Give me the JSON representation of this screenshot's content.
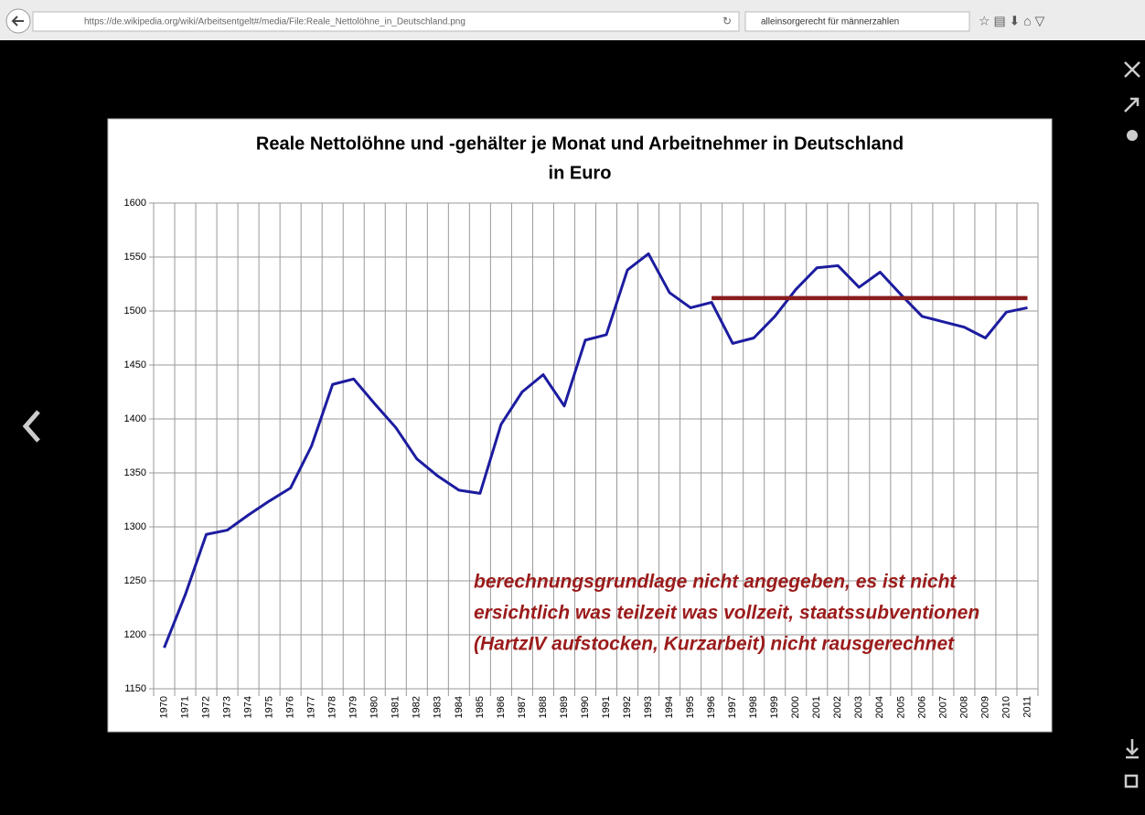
{
  "browser": {
    "url": "https://de.wikipedia.org/wiki/Arbeitsentgelt#/media/File:Reale_Nettolöhne_in_Deutschland.png",
    "search": "alleinsorgerecht für männerzahlen"
  },
  "chart_data": {
    "type": "line",
    "title": [
      "Reale Nettolöhne und -gehälter je Monat und Arbeitnehmer in Deutschland",
      "in Euro"
    ],
    "annotation": [
      "berechnungsgrundlage nicht angegeben, es ist nicht",
      "ersichtlich was teilzeit was vollzeit, staatssubventionen",
      "(HartzIV aufstocken, Kurzarbeit) nicht rausgerechnet"
    ],
    "categories": [
      "1970",
      "1971",
      "1972",
      "1973",
      "1974",
      "1975",
      "1976",
      "1977",
      "1978",
      "1979",
      "1980",
      "1981",
      "1982",
      "1983",
      "1984",
      "1985",
      "1986",
      "1987",
      "1988",
      "1989",
      "1990",
      "1991",
      "1992",
      "1993",
      "1994",
      "1995",
      "1996",
      "1997",
      "1998",
      "1999",
      "2000",
      "2001",
      "2002",
      "2003",
      "2004",
      "2005",
      "2006",
      "2007",
      "2008",
      "2009",
      "2010",
      "2011"
    ],
    "series": [
      {
        "color": "#1c1ca0",
        "values": [
          1188,
          1237,
          1293,
          1297,
          1311,
          1324,
          1336,
          1375,
          1432,
          1437,
          1414,
          1392,
          1363,
          1347,
          1334,
          1331,
          1395,
          1425,
          1441,
          1412,
          1473,
          1478,
          1538,
          1553,
          1517,
          1503,
          1508,
          1470,
          1475,
          1495,
          1520,
          1540,
          1542,
          1522,
          1536,
          1515,
          1495,
          1490,
          1485,
          1475,
          1499,
          1503
        ]
      },
      {
        "color": "#8a1c1c",
        "values": [
          null,
          null,
          null,
          null,
          null,
          null,
          null,
          null,
          null,
          null,
          null,
          null,
          null,
          null,
          null,
          null,
          null,
          null,
          null,
          null,
          null,
          null,
          null,
          null,
          null,
          null,
          1512,
          1512,
          1512,
          1512,
          1512,
          1512,
          1512,
          1512,
          1512,
          1512,
          1512,
          1512,
          1512,
          1512,
          1512,
          1512
        ]
      }
    ],
    "ylim": [
      1150,
      1600
    ],
    "yticks": [
      1150,
      1200,
      1250,
      1300,
      1350,
      1400,
      1450,
      1500,
      1550,
      1600
    ],
    "grid": true
  }
}
